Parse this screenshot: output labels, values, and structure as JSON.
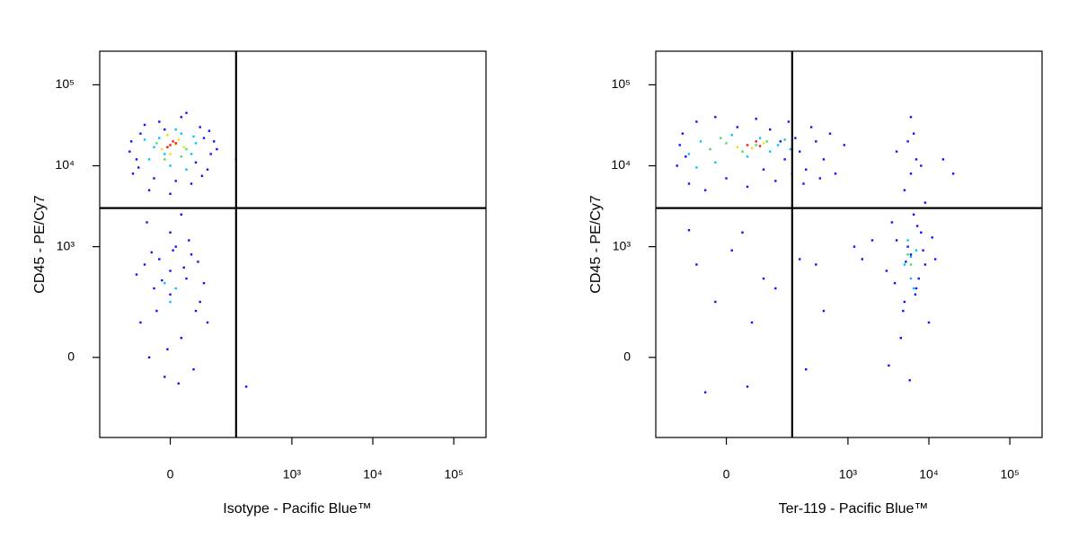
{
  "chart_data": [
    {
      "type": "scatter",
      "xlabel": "Isotype - Pacific Blue™",
      "ylabel": "CD45 - PE/Cy7",
      "xscale": "biexponential",
      "yscale": "biexponential",
      "xlim": [
        -230,
        250000
      ],
      "ylim": [
        -415,
        260000
      ],
      "xticks": [
        0,
        {
          "value": 1000,
          "label": "10³"
        },
        {
          "value": 10000,
          "label": "10⁴"
        },
        {
          "value": 100000,
          "label": "10⁵"
        }
      ],
      "yticks": [
        0,
        {
          "value": 1000,
          "label": "10³"
        },
        {
          "value": 10000,
          "label": "10⁴"
        },
        {
          "value": 100000,
          "label": "10⁵"
        }
      ],
      "gates": {
        "x": 200,
        "y": 3000,
        "color": "#000000"
      },
      "series": [
        {
          "color": "#1010ff",
          "points": [
            [
              -80,
              8000
            ],
            [
              -60,
              25000
            ],
            [
              -40,
              5000
            ],
            [
              -20,
              35000
            ],
            [
              0,
              4500
            ],
            [
              20,
              40000
            ],
            [
              40,
              6000
            ],
            [
              60,
              30000
            ],
            [
              80,
              9000
            ],
            [
              100,
              20000
            ],
            [
              -90,
              15000
            ],
            [
              -70,
              12000
            ],
            [
              90,
              14000
            ],
            [
              -30,
              7000
            ],
            [
              30,
              45000
            ],
            [
              50,
              11000
            ],
            [
              -50,
              32000
            ],
            [
              70,
              22000
            ],
            [
              10,
              6500
            ],
            [
              -10,
              28000
            ],
            [
              110,
              16000
            ],
            [
              -85,
              20000
            ],
            [
              85,
              27000
            ],
            [
              -65,
              9500
            ],
            [
              65,
              7500
            ],
            [
              -60,
              100
            ],
            [
              -30,
              300
            ],
            [
              0,
              500
            ],
            [
              20,
              50
            ],
            [
              40,
              800
            ],
            [
              60,
              200
            ],
            [
              -50,
              600
            ],
            [
              -10,
              -50
            ],
            [
              10,
              1000
            ],
            [
              30,
              400
            ],
            [
              -40,
              0
            ],
            [
              50,
              150
            ],
            [
              -20,
              700
            ],
            [
              0,
              250
            ],
            [
              70,
              350
            ],
            [
              -70,
              450
            ],
            [
              15,
              -70
            ],
            [
              35,
              1200
            ],
            [
              -25,
              150
            ],
            [
              5,
              900
            ],
            [
              -5,
              20
            ],
            [
              25,
              550
            ],
            [
              45,
              -30
            ],
            [
              -35,
              850
            ],
            [
              55,
              650
            ],
            [
              80,
              100
            ],
            [
              -15,
              380
            ],
            [
              0,
              1500
            ],
            [
              -45,
              2000
            ],
            [
              20,
              2500
            ],
            [
              270,
              -80
            ],
            [
              200,
              12000
            ]
          ]
        },
        {
          "color": "#00c0ff",
          "points": [
            [
              -40,
              12000
            ],
            [
              -20,
              22000
            ],
            [
              0,
              10000
            ],
            [
              20,
              25000
            ],
            [
              40,
              14000
            ],
            [
              -30,
              17000
            ],
            [
              30,
              9000
            ],
            [
              50,
              19000
            ],
            [
              -10,
              14000
            ],
            [
              10,
              28000
            ],
            [
              -50,
              21000
            ],
            [
              45,
              23000
            ],
            [
              0,
              200
            ],
            [
              -10,
              350
            ],
            [
              10,
              300
            ]
          ]
        },
        {
          "color": "#40e060",
          "points": [
            [
              -25,
              19000
            ],
            [
              30,
              16000
            ],
            [
              -10,
              12000
            ],
            [
              20,
              13000
            ]
          ]
        },
        {
          "color": "#f0e000",
          "points": [
            [
              -15,
              16000
            ],
            [
              15,
              21000
            ],
            [
              0,
              14000
            ],
            [
              25,
              17000
            ],
            [
              -5,
              24000
            ],
            [
              10,
              18500
            ]
          ]
        },
        {
          "color": "#ff1010",
          "points": [
            [
              0,
              18000
            ],
            [
              5,
              20000
            ],
            [
              -5,
              17000
            ],
            [
              10,
              19000
            ]
          ]
        }
      ]
    },
    {
      "type": "scatter",
      "xlabel": "Ter-119 - Pacific Blue™",
      "ylabel": "CD45 - PE/Cy7",
      "xscale": "biexponential",
      "yscale": "biexponential",
      "xlim": [
        -230,
        250000
      ],
      "ylim": [
        -415,
        260000
      ],
      "xticks": [
        0,
        {
          "value": 1000,
          "label": "10³"
        },
        {
          "value": 10000,
          "label": "10⁴"
        },
        {
          "value": 100000,
          "label": "10⁵"
        }
      ],
      "yticks": [
        0,
        {
          "value": 1000,
          "label": "10³"
        },
        {
          "value": 10000,
          "label": "10⁴"
        },
        {
          "value": 100000,
          "label": "10⁵"
        }
      ],
      "gates": {
        "x": 200,
        "y": 3000,
        "color": "#000000"
      },
      "series": [
        {
          "color": "#1010ff",
          "points": [
            [
              -120,
              10000
            ],
            [
              -100,
              25000
            ],
            [
              -80,
              6000
            ],
            [
              -60,
              35000
            ],
            [
              -40,
              5000
            ],
            [
              -20,
              40000
            ],
            [
              0,
              7000
            ],
            [
              20,
              30000
            ],
            [
              40,
              5500
            ],
            [
              60,
              38000
            ],
            [
              80,
              9000
            ],
            [
              100,
              28000
            ],
            [
              120,
              6500
            ],
            [
              140,
              20000
            ],
            [
              160,
              12000
            ],
            [
              180,
              35000
            ],
            [
              200,
              8000
            ],
            [
              250,
              15000
            ],
            [
              300,
              9000
            ],
            [
              400,
              20000
            ],
            [
              500,
              12000
            ],
            [
              600,
              25000
            ],
            [
              700,
              8000
            ],
            [
              900,
              18000
            ],
            [
              350,
              30000
            ],
            [
              -110,
              18000
            ],
            [
              -90,
              13000
            ],
            [
              220,
              22000
            ],
            [
              280,
              6000
            ],
            [
              450,
              7000
            ],
            [
              3000,
              500
            ],
            [
              4000,
              1200
            ],
            [
              5000,
              200
            ],
            [
              6000,
              800
            ],
            [
              7000,
              300
            ],
            [
              8000,
              1500
            ],
            [
              9000,
              600
            ],
            [
              10000,
              100
            ],
            [
              3500,
              2000
            ],
            [
              4500,
              50
            ],
            [
              5500,
              1000
            ],
            [
              6500,
              2500
            ],
            [
              7500,
              400
            ],
            [
              8500,
              900
            ],
            [
              3200,
              -20
            ],
            [
              12000,
              700
            ],
            [
              5000,
              5000
            ],
            [
              6000,
              8000
            ],
            [
              7000,
              12000
            ],
            [
              5500,
              20000
            ],
            [
              6500,
              25000
            ],
            [
              4000,
              15000
            ],
            [
              8000,
              10000
            ],
            [
              6000,
              40000
            ],
            [
              9000,
              3500
            ],
            [
              4800,
              150
            ],
            [
              7200,
              1800
            ],
            [
              5800,
              -60
            ],
            [
              6800,
              250
            ],
            [
              11000,
              1300
            ],
            [
              5200,
              650
            ],
            [
              3800,
              350
            ],
            [
              -60,
              600
            ],
            [
              -20,
              200
            ],
            [
              10,
              900
            ],
            [
              40,
              -80
            ],
            [
              50,
              100
            ],
            [
              80,
              400
            ],
            [
              -40,
              -100
            ],
            [
              120,
              300
            ],
            [
              30,
              1500
            ],
            [
              250,
              700
            ],
            [
              400,
              600
            ],
            [
              500,
              150
            ],
            [
              1200,
              1000
            ],
            [
              1500,
              700
            ],
            [
              2000,
              1200
            ],
            [
              -80,
              1600
            ],
            [
              15000,
              12000
            ],
            [
              20000,
              8000
            ],
            [
              300,
              -30
            ]
          ]
        },
        {
          "color": "#00c0ff",
          "points": [
            [
              -80,
              14000
            ],
            [
              -50,
              20000
            ],
            [
              -20,
              11000
            ],
            [
              10,
              24000
            ],
            [
              40,
              13000
            ],
            [
              70,
              22000
            ],
            [
              100,
              15000
            ],
            [
              130,
              18000
            ],
            [
              -60,
              9500
            ],
            [
              160,
              21000
            ],
            [
              190,
              16000
            ],
            [
              5000,
              600
            ],
            [
              6000,
              400
            ],
            [
              7000,
              900
            ],
            [
              5500,
              1200
            ],
            [
              6500,
              300
            ],
            [
              6000,
              750
            ]
          ]
        },
        {
          "color": "#40e060",
          "points": [
            [
              -30,
              16000
            ],
            [
              0,
              19000
            ],
            [
              30,
              15000
            ],
            [
              60,
              18000
            ],
            [
              90,
              20000
            ],
            [
              -10,
              22000
            ],
            [
              6000,
              600
            ],
            [
              5500,
              800
            ]
          ]
        },
        {
          "color": "#f0e000",
          "points": [
            [
              20,
              17000
            ],
            [
              50,
              16500
            ],
            [
              80,
              19000
            ]
          ]
        },
        {
          "color": "#ff1010",
          "points": [
            [
              40,
              18000
            ],
            [
              60,
              20000
            ],
            [
              70,
              17500
            ]
          ]
        }
      ]
    }
  ]
}
